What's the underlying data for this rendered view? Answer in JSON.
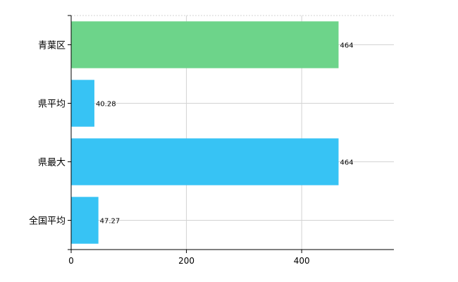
{
  "chart_data": {
    "type": "bar",
    "orientation": "horizontal",
    "categories": [
      "青葉区",
      "県平均",
      "県最大",
      "全国平均"
    ],
    "values": [
      464,
      40.28,
      464,
      47.27
    ],
    "value_labels": [
      "464",
      "40.28",
      "464",
      "47.27"
    ],
    "bar_colors": [
      "#6dd48a",
      "#37c3f4",
      "#37c3f4",
      "#37c3f4"
    ],
    "xlim": [
      0,
      560
    ],
    "xticks": [
      0,
      200,
      400
    ],
    "grid": true,
    "legend": "none",
    "title": "",
    "xlabel": "",
    "ylabel": ""
  },
  "colors": {
    "grid": "#d3d3d3",
    "axis": "#000000",
    "highlight_bar": "#6dd48a",
    "bar": "#37c3f4"
  }
}
